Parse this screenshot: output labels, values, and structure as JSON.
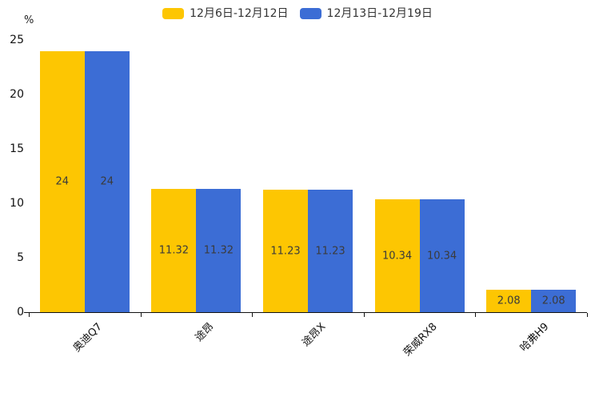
{
  "chart_data": {
    "type": "bar",
    "title": "",
    "xlabel": "",
    "ylabel": "%",
    "ylim": [
      0,
      25
    ],
    "yticks": [
      0,
      5,
      10,
      15,
      20,
      25
    ],
    "grid": false,
    "legend_position": "top-center",
    "value_label_position": "inside-center",
    "categories": [
      "奥迪Q7",
      "途昂",
      "途昂X",
      "荣威RX8",
      "哈弗H9"
    ],
    "series": [
      {
        "name": "12月6日-12月12日",
        "color": "#FDC602",
        "values": [
          24,
          11.32,
          11.23,
          10.34,
          2.08
        ]
      },
      {
        "name": "12月13日-12月19日",
        "color": "#3C6DD5",
        "values": [
          24,
          11.32,
          11.23,
          10.34,
          2.08
        ]
      }
    ]
  },
  "colors": {
    "axis": "#111111",
    "tick_text": "#111111",
    "value_text": "#3b3b3b",
    "legend_text": "#333333",
    "background": "#ffffff"
  }
}
